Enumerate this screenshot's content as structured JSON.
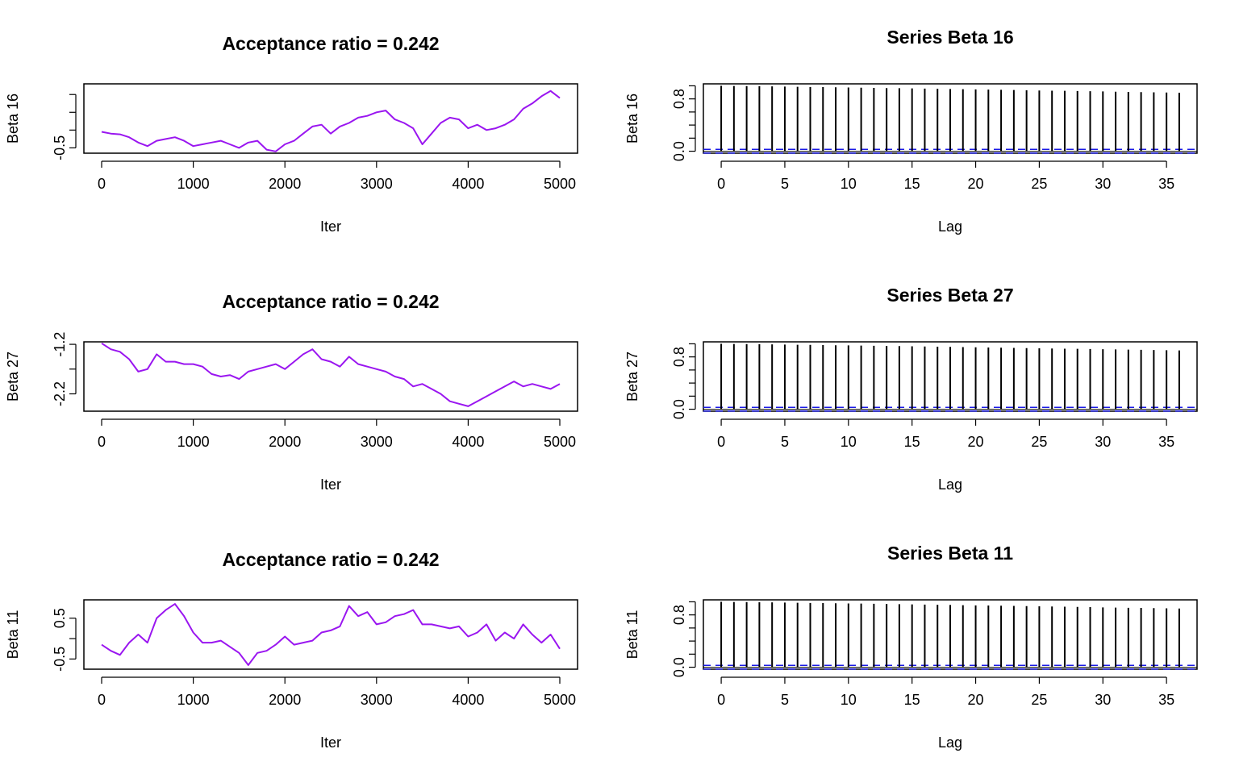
{
  "colors": {
    "trace": "#9a16f0",
    "acf": "#000000",
    "ci": "#1a1ae6",
    "box": "#000000"
  },
  "chart_data": [
    {
      "type": "line",
      "title": "Acceptance ratio = 0.242",
      "xlabel": "Iter",
      "ylabel": "Beta 16",
      "xlim": [
        0,
        5000
      ],
      "ylim": [
        -0.65,
        1.3
      ],
      "xticks": [
        "0",
        "1000",
        "2000",
        "3000",
        "4000",
        "5000"
      ],
      "yticks": [
        "-0.5"
      ],
      "grid": false,
      "series": [
        {
          "x": [
            0,
            100,
            200,
            300,
            400,
            500,
            600,
            700,
            800,
            900,
            1000,
            1100,
            1200,
            1300,
            1400,
            1500,
            1600,
            1700,
            1800,
            1900,
            2000,
            2100,
            2200,
            2300,
            2400,
            2500,
            2600,
            2700,
            2800,
            2900,
            3000,
            3100,
            3200,
            3300,
            3400,
            3500,
            3600,
            3700,
            3800,
            3900,
            4000,
            4100,
            4200,
            4300,
            4400,
            4500,
            4600,
            4700,
            4800,
            4900,
            5000
          ],
          "y": [
            -0.05,
            -0.1,
            -0.12,
            -0.2,
            -0.35,
            -0.45,
            -0.3,
            -0.25,
            -0.2,
            -0.3,
            -0.45,
            -0.4,
            -0.35,
            -0.3,
            -0.4,
            -0.5,
            -0.35,
            -0.3,
            -0.55,
            -0.6,
            -0.4,
            -0.3,
            -0.1,
            0.1,
            0.15,
            -0.1,
            0.1,
            0.2,
            0.35,
            0.4,
            0.5,
            0.55,
            0.3,
            0.2,
            0.05,
            -0.4,
            -0.1,
            0.2,
            0.35,
            0.3,
            0.05,
            0.15,
            0.0,
            0.05,
            0.15,
            0.3,
            0.6,
            0.75,
            0.95,
            1.1,
            0.9
          ]
        }
      ]
    },
    {
      "type": "bar",
      "title": "Series Beta 16",
      "xlabel": "Lag",
      "ylabel": "Beta 16",
      "xlim": [
        -1.4,
        37.4
      ],
      "ylim": [
        -0.03,
        1.03
      ],
      "xticks": [
        "0",
        "5",
        "10",
        "15",
        "20",
        "25",
        "30",
        "35"
      ],
      "yticks": [
        "0.0",
        "0.8"
      ],
      "ci": [
        0.028,
        -0.028
      ],
      "categories": [
        0,
        1,
        2,
        3,
        4,
        5,
        6,
        7,
        8,
        9,
        10,
        11,
        12,
        13,
        14,
        15,
        16,
        17,
        18,
        19,
        20,
        21,
        22,
        23,
        24,
        25,
        26,
        27,
        28,
        29,
        30,
        31,
        32,
        33,
        34,
        35,
        36
      ],
      "values": [
        1.0,
        0.998,
        0.996,
        0.994,
        0.991,
        0.988,
        0.986,
        0.983,
        0.981,
        0.978,
        0.975,
        0.972,
        0.969,
        0.966,
        0.963,
        0.96,
        0.957,
        0.954,
        0.951,
        0.948,
        0.945,
        0.942,
        0.939,
        0.936,
        0.932,
        0.929,
        0.926,
        0.923,
        0.92,
        0.917,
        0.914,
        0.91,
        0.907,
        0.904,
        0.901,
        0.898,
        0.895
      ]
    },
    {
      "type": "line",
      "title": "Acceptance ratio = 0.242",
      "xlabel": "Iter",
      "ylabel": "Beta 27",
      "xlim": [
        0,
        5000
      ],
      "ylim": [
        -2.55,
        -1.15
      ],
      "xticks": [
        "0",
        "1000",
        "2000",
        "3000",
        "4000",
        "5000"
      ],
      "yticks": [
        "-2.2",
        "-1.2"
      ],
      "grid": false,
      "series": [
        {
          "x": [
            0,
            100,
            200,
            300,
            400,
            500,
            600,
            700,
            800,
            900,
            1000,
            1100,
            1200,
            1300,
            1400,
            1500,
            1600,
            1700,
            1800,
            1900,
            2000,
            2100,
            2200,
            2300,
            2400,
            2500,
            2600,
            2700,
            2800,
            2900,
            3000,
            3100,
            3200,
            3300,
            3400,
            3500,
            3600,
            3700,
            3800,
            3900,
            4000,
            4100,
            4200,
            4300,
            4400,
            4500,
            4600,
            4700,
            4800,
            4900,
            5000
          ],
          "y": [
            -1.18,
            -1.3,
            -1.35,
            -1.5,
            -1.75,
            -1.7,
            -1.4,
            -1.55,
            -1.55,
            -1.6,
            -1.6,
            -1.65,
            -1.8,
            -1.85,
            -1.82,
            -1.9,
            -1.75,
            -1.7,
            -1.65,
            -1.6,
            -1.7,
            -1.55,
            -1.4,
            -1.3,
            -1.5,
            -1.55,
            -1.65,
            -1.45,
            -1.6,
            -1.65,
            -1.7,
            -1.75,
            -1.85,
            -1.9,
            -2.05,
            -2.0,
            -2.1,
            -2.2,
            -2.35,
            -2.4,
            -2.45,
            -2.35,
            -2.25,
            -2.15,
            -2.05,
            -1.95,
            -2.05,
            -2.0,
            -2.05,
            -2.1,
            -2.0
          ]
        }
      ]
    },
    {
      "type": "bar",
      "title": "Series Beta 27",
      "xlabel": "Lag",
      "ylabel": "Beta 27",
      "xlim": [
        -1.4,
        37.4
      ],
      "ylim": [
        -0.03,
        1.03
      ],
      "xticks": [
        "0",
        "5",
        "10",
        "15",
        "20",
        "25",
        "30",
        "35"
      ],
      "yticks": [
        "0.0",
        "0.8"
      ],
      "ci": [
        0.028,
        -0.028
      ],
      "categories": [
        0,
        1,
        2,
        3,
        4,
        5,
        6,
        7,
        8,
        9,
        10,
        11,
        12,
        13,
        14,
        15,
        16,
        17,
        18,
        19,
        20,
        21,
        22,
        23,
        24,
        25,
        26,
        27,
        28,
        29,
        30,
        31,
        32,
        33,
        34,
        35,
        36
      ],
      "values": [
        1.0,
        0.998,
        0.996,
        0.994,
        0.991,
        0.989,
        0.986,
        0.984,
        0.981,
        0.978,
        0.976,
        0.973,
        0.97,
        0.967,
        0.965,
        0.962,
        0.959,
        0.956,
        0.953,
        0.95,
        0.947,
        0.944,
        0.941,
        0.938,
        0.935,
        0.932,
        0.929,
        0.926,
        0.923,
        0.92,
        0.917,
        0.914,
        0.911,
        0.908,
        0.905,
        0.902,
        0.899
      ]
    },
    {
      "type": "line",
      "title": "Acceptance ratio = 0.242",
      "xlabel": "Iter",
      "ylabel": "Beta 11",
      "xlim": [
        0,
        5000
      ],
      "ylim": [
        -0.75,
        0.95
      ],
      "xticks": [
        "0",
        "1000",
        "2000",
        "3000",
        "4000",
        "5000"
      ],
      "yticks": [
        "-0.5",
        "0.5"
      ],
      "grid": false,
      "series": [
        {
          "x": [
            0,
            100,
            200,
            300,
            400,
            500,
            600,
            700,
            800,
            900,
            1000,
            1100,
            1200,
            1300,
            1400,
            1500,
            1600,
            1700,
            1800,
            1900,
            2000,
            2100,
            2200,
            2300,
            2400,
            2500,
            2600,
            2700,
            2800,
            2900,
            3000,
            3100,
            3200,
            3300,
            3400,
            3500,
            3600,
            3700,
            3800,
            3900,
            4000,
            4100,
            4200,
            4300,
            4400,
            4500,
            4600,
            4700,
            4800,
            4900,
            5000
          ],
          "y": [
            -0.15,
            -0.3,
            -0.4,
            -0.1,
            0.1,
            -0.1,
            0.5,
            0.7,
            0.85,
            0.55,
            0.15,
            -0.1,
            -0.1,
            -0.05,
            -0.2,
            -0.35,
            -0.65,
            -0.35,
            -0.3,
            -0.15,
            0.05,
            -0.15,
            -0.1,
            -0.05,
            0.15,
            0.2,
            0.3,
            0.8,
            0.55,
            0.65,
            0.35,
            0.4,
            0.55,
            0.6,
            0.7,
            0.35,
            0.35,
            0.3,
            0.25,
            0.3,
            0.05,
            0.15,
            0.35,
            -0.05,
            0.15,
            0.0,
            0.35,
            0.1,
            -0.1,
            0.1,
            -0.25
          ]
        }
      ]
    },
    {
      "type": "bar",
      "title": "Series Beta 11",
      "xlabel": "Lag",
      "ylabel": "Beta 11",
      "xlim": [
        -1.4,
        37.4
      ],
      "ylim": [
        -0.03,
        1.03
      ],
      "xticks": [
        "0",
        "5",
        "10",
        "15",
        "20",
        "25",
        "30",
        "35"
      ],
      "yticks": [
        "0.0",
        "0.8"
      ],
      "ci": [
        0.028,
        -0.028
      ],
      "categories": [
        0,
        1,
        2,
        3,
        4,
        5,
        6,
        7,
        8,
        9,
        10,
        11,
        12,
        13,
        14,
        15,
        16,
        17,
        18,
        19,
        20,
        21,
        22,
        23,
        24,
        25,
        26,
        27,
        28,
        29,
        30,
        31,
        32,
        33,
        34,
        35,
        36
      ],
      "values": [
        1.0,
        0.998,
        0.996,
        0.993,
        0.991,
        0.988,
        0.986,
        0.983,
        0.981,
        0.978,
        0.975,
        0.973,
        0.97,
        0.967,
        0.964,
        0.961,
        0.958,
        0.955,
        0.952,
        0.949,
        0.946,
        0.943,
        0.94,
        0.937,
        0.934,
        0.931,
        0.928,
        0.925,
        0.922,
        0.919,
        0.915,
        0.912,
        0.909,
        0.906,
        0.903,
        0.9,
        0.897
      ]
    }
  ]
}
